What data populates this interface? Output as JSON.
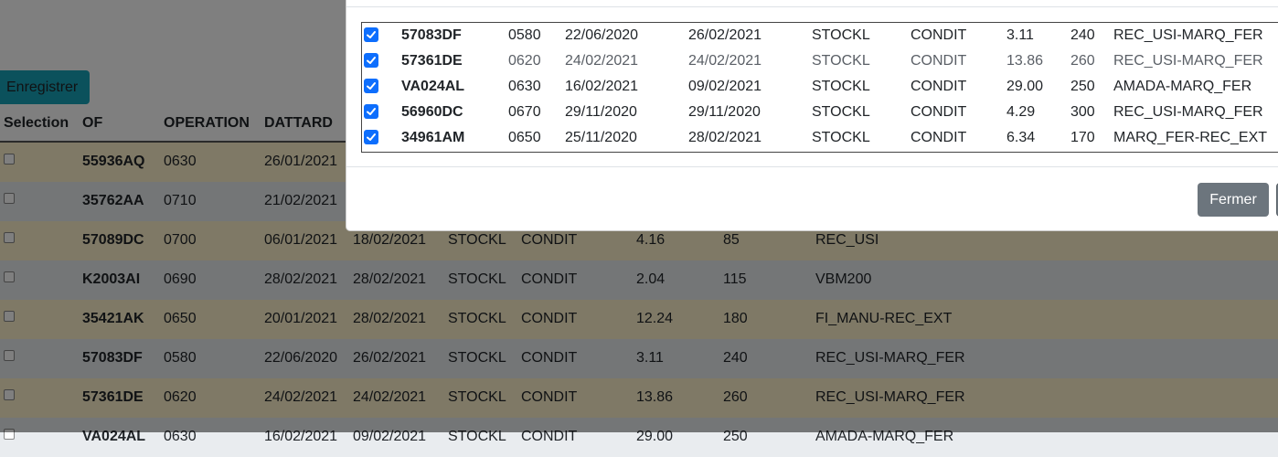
{
  "page": {
    "save_label": "Enregistrer",
    "columns": [
      "Selection",
      "OF",
      "OPERATION",
      "DATTARD"
    ],
    "rows": [
      {
        "of": "55936AQ",
        "op": "0630",
        "d1": "26/01/2021",
        "d2": "",
        "loc": "",
        "cond": "",
        "val": "",
        "qty": "",
        "route": ""
      },
      {
        "of": "35762AA",
        "op": "0710",
        "d1": "21/02/2021",
        "d2": "",
        "loc": "",
        "cond": "",
        "val": "",
        "qty": "",
        "route": ""
      },
      {
        "of": "57089DC",
        "op": "0700",
        "d1": "06/01/2021",
        "d2": "18/02/2021",
        "loc": "STOCKL",
        "cond": "CONDIT",
        "val": "4.16",
        "qty": "85",
        "route": "REC_USI"
      },
      {
        "of": "K2003AI",
        "op": "0690",
        "d1": "28/02/2021",
        "d2": "28/02/2021",
        "loc": "STOCKL",
        "cond": "CONDIT",
        "val": "2.04",
        "qty": "115",
        "route": "VBM200"
      },
      {
        "of": "35421AK",
        "op": "0650",
        "d1": "20/01/2021",
        "d2": "28/02/2021",
        "loc": "STOCKL",
        "cond": "CONDIT",
        "val": "12.24",
        "qty": "180",
        "route": "FI_MANU-REC_EXT"
      },
      {
        "of": "57083DF",
        "op": "0580",
        "d1": "22/06/2020",
        "d2": "26/02/2021",
        "loc": "STOCKL",
        "cond": "CONDIT",
        "val": "3.11",
        "qty": "240",
        "route": "REC_USI-MARQ_FER"
      },
      {
        "of": "57361DE",
        "op": "0620",
        "d1": "24/02/2021",
        "d2": "24/02/2021",
        "loc": "STOCKL",
        "cond": "CONDIT",
        "val": "13.86",
        "qty": "260",
        "route": "REC_USI-MARQ_FER"
      },
      {
        "of": "VA024AL",
        "op": "0630",
        "d1": "16/02/2021",
        "d2": "09/02/2021",
        "loc": "STOCKL",
        "cond": "CONDIT",
        "val": "29.00",
        "qty": "250",
        "route": "AMADA-MARQ_FER"
      }
    ]
  },
  "modal": {
    "selected_rows": [
      {
        "of": "57083DF",
        "op": "0580",
        "d1": "22/06/2020",
        "d2": "26/02/2021",
        "loc": "STOCKL",
        "cond": "CONDIT",
        "val": "3.11",
        "qty": "240",
        "route": "REC_USI-MARQ_FER"
      },
      {
        "of": "57361DE",
        "op": "0620",
        "d1": "24/02/2021",
        "d2": "24/02/2021",
        "loc": "STOCKL",
        "cond": "CONDIT",
        "val": "13.86",
        "qty": "260",
        "route": "REC_USI-MARQ_FER"
      },
      {
        "of": "VA024AL",
        "op": "0630",
        "d1": "16/02/2021",
        "d2": "09/02/2021",
        "loc": "STOCKL",
        "cond": "CONDIT",
        "val": "29.00",
        "qty": "250",
        "route": "AMADA-MARQ_FER"
      },
      {
        "of": "56960DC",
        "op": "0670",
        "d1": "29/11/2020",
        "d2": "29/11/2020",
        "loc": "STOCKL",
        "cond": "CONDIT",
        "val": "4.29",
        "qty": "300",
        "route": "REC_USI-MARQ_FER"
      },
      {
        "of": "34961AM",
        "op": "0650",
        "d1": "25/11/2020",
        "d2": "28/02/2021",
        "loc": "STOCKL",
        "cond": "CONDIT",
        "val": "6.34",
        "qty": "170",
        "route": "MARQ_FER-REC_EXT"
      }
    ],
    "close_label": "Fermer"
  },
  "colors": {
    "row_odd": "#fff3cd",
    "row_even": "#e9ecef",
    "save_button": "#17a2b8",
    "checkbox": "#0d6efd",
    "close_button": "#6c757d"
  }
}
